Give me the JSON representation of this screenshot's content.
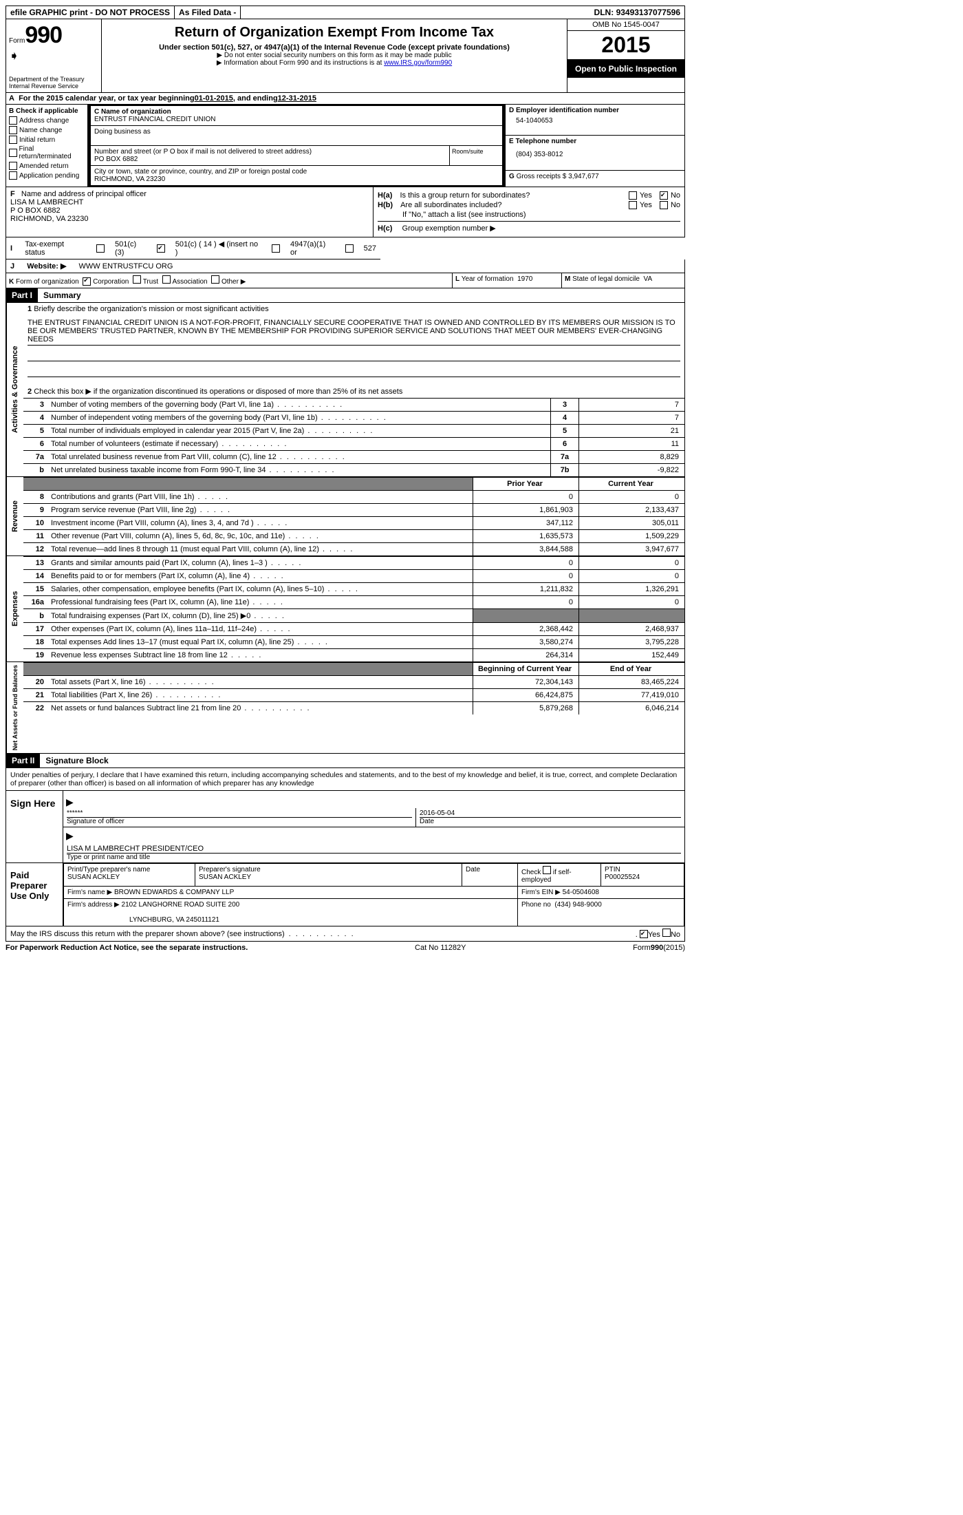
{
  "topbar": {
    "efile": "efile GRAPHIC print - DO NOT PROCESS",
    "asfiled": "As Filed Data -",
    "dln_label": "DLN:",
    "dln": "93493137077596"
  },
  "header": {
    "form_word": "Form",
    "form_no": "990",
    "dept1": "Department of the Treasury",
    "dept2": "Internal Revenue Service",
    "title": "Return of Organization Exempt From Income Tax",
    "subtitle": "Under section 501(c), 527, or 4947(a)(1) of the Internal Revenue Code (except private foundations)",
    "note1": "▶ Do not enter social security numbers on this form as it may be made public",
    "note2_a": "▶ Information about Form 990 and its instructions is at ",
    "note2_link": "www.IRS.gov/form990",
    "omb": "OMB No 1545-0047",
    "year": "2015",
    "inspection": "Open to Public Inspection"
  },
  "A": {
    "text_a": "For the 2015 calendar year, or tax year beginning ",
    "begin": "01-01-2015",
    "text_b": ", and ending ",
    "end": "12-31-2015"
  },
  "B": {
    "label": "Check if applicable",
    "opts": [
      "Address change",
      "Name change",
      "Initial return",
      "Final return/terminated",
      "Amended return",
      "Application pending"
    ]
  },
  "C": {
    "name_lbl": "Name of organization",
    "name": "ENTRUST FINANCIAL CREDIT UNION",
    "dba_lbl": "Doing business as",
    "street_lbl": "Number and street (or P O  box if mail is not delivered to street address)",
    "room_lbl": "Room/suite",
    "street": "PO BOX 6882",
    "city_lbl": "City or town, state or province, country, and ZIP or foreign postal code",
    "city": "RICHMOND, VA  23230"
  },
  "D": {
    "lbl": "Employer identification number",
    "val": "54-1040653"
  },
  "E": {
    "lbl": "Telephone number",
    "val": "(804) 353-8012"
  },
  "G": {
    "lbl": "Gross receipts $",
    "val": "3,947,677"
  },
  "F": {
    "lbl": "Name and address of principal officer",
    "l1": "LISA M LAMBRECHT",
    "l2": "P O BOX 6882",
    "l3": "RICHMOND, VA  23230"
  },
  "H": {
    "a": "Is this a group return for subordinates?",
    "b": "Are all subordinates included?",
    "b2": "If \"No,\" attach a list  (see instructions)",
    "c": "Group exemption number ▶",
    "yes": "Yes",
    "no": "No"
  },
  "I": {
    "lbl": "Tax-exempt status",
    "o1": "501(c)(3)",
    "o2": "501(c) ( 14 ) ◀ (insert no )",
    "o3": "4947(a)(1) or",
    "o4": "527"
  },
  "J": {
    "lbl": "Website: ▶",
    "val": "WWW ENTRUSTFCU ORG"
  },
  "K": {
    "lbl": "Form of organization",
    "o1": "Corporation",
    "o2": "Trust",
    "o3": "Association",
    "o4": "Other ▶"
  },
  "L": {
    "lbl": "Year of formation",
    "val": "1970"
  },
  "M": {
    "lbl": "State of legal domicile",
    "val": "VA"
  },
  "part1": {
    "tag": "Part I",
    "title": "Summary"
  },
  "p1": {
    "l1_lbl": "Briefly describe the organization's mission or most significant activities",
    "mission": "THE ENTRUST FINANCIAL CREDIT UNION IS A NOT-FOR-PROFIT, FINANCIALLY SECURE COOPERATIVE THAT IS OWNED AND CONTROLLED BY ITS MEMBERS  OUR MISSION IS TO BE OUR MEMBERS' TRUSTED PARTNER, KNOWN BY THE MEMBERSHIP FOR PROVIDING SUPERIOR SERVICE AND SOLUTIONS THAT MEET OUR MEMBERS' EVER-CHANGING NEEDS",
    "l2": "Check this box ▶     if the organization discontinued its operations or disposed of more than 25% of its net assets",
    "rows_a": [
      {
        "n": "3",
        "t": "Number of voting members of the governing body (Part VI, line 1a)",
        "box": "3",
        "v": "7"
      },
      {
        "n": "4",
        "t": "Number of independent voting members of the governing body (Part VI, line 1b)",
        "box": "4",
        "v": "7"
      },
      {
        "n": "5",
        "t": "Total number of individuals employed in calendar year 2015 (Part V, line 2a)",
        "box": "5",
        "v": "21"
      },
      {
        "n": "6",
        "t": "Total number of volunteers (estimate if necessary)",
        "box": "6",
        "v": "11"
      },
      {
        "n": "7a",
        "t": "Total unrelated business revenue from Part VIII, column (C), line 12",
        "box": "7a",
        "v": "8,829"
      },
      {
        "n": "b",
        "t": "Net unrelated business taxable income from Form 990-T, line 34",
        "box": "7b",
        "v": "-9,822"
      }
    ],
    "hdr_prior": "Prior Year",
    "hdr_curr": "Current Year",
    "rows_rev": [
      {
        "n": "8",
        "t": "Contributions and grants (Part VIII, line 1h)",
        "p": "0",
        "c": "0"
      },
      {
        "n": "9",
        "t": "Program service revenue (Part VIII, line 2g)",
        "p": "1,861,903",
        "c": "2,133,437"
      },
      {
        "n": "10",
        "t": "Investment income (Part VIII, column (A), lines 3, 4, and 7d )",
        "p": "347,112",
        "c": "305,011"
      },
      {
        "n": "11",
        "t": "Other revenue (Part VIII, column (A), lines 5, 6d, 8c, 9c, 10c, and 11e)",
        "p": "1,635,573",
        "c": "1,509,229"
      },
      {
        "n": "12",
        "t": "Total revenue—add lines 8 through 11 (must equal Part VIII, column (A), line 12)",
        "p": "3,844,588",
        "c": "3,947,677"
      }
    ],
    "rows_exp": [
      {
        "n": "13",
        "t": "Grants and similar amounts paid (Part IX, column (A), lines 1–3 )",
        "p": "0",
        "c": "0"
      },
      {
        "n": "14",
        "t": "Benefits paid to or for members (Part IX, column (A), line 4)",
        "p": "0",
        "c": "0"
      },
      {
        "n": "15",
        "t": "Salaries, other compensation, employee benefits (Part IX, column (A), lines 5–10)",
        "p": "1,211,832",
        "c": "1,326,291"
      },
      {
        "n": "16a",
        "t": "Professional fundraising fees (Part IX, column (A), line 11e)",
        "p": "0",
        "c": "0"
      },
      {
        "n": "b",
        "t": "Total fundraising expenses (Part IX, column (D), line 25) ▶0",
        "p": "shade",
        "c": "shade"
      },
      {
        "n": "17",
        "t": "Other expenses (Part IX, column (A), lines 11a–11d, 11f–24e)",
        "p": "2,368,442",
        "c": "2,468,937"
      },
      {
        "n": "18",
        "t": "Total expenses  Add lines 13–17 (must equal Part IX, column (A), line 25)",
        "p": "3,580,274",
        "c": "3,795,228"
      },
      {
        "n": "19",
        "t": "Revenue less expenses  Subtract line 18 from line 12",
        "p": "264,314",
        "c": "152,449"
      }
    ],
    "hdr_begin": "Beginning of Current Year",
    "hdr_end": "End of Year",
    "rows_net": [
      {
        "n": "20",
        "t": "Total assets (Part X, line 16)",
        "p": "72,304,143",
        "c": "83,465,224"
      },
      {
        "n": "21",
        "t": "Total liabilities (Part X, line 26)",
        "p": "66,424,875",
        "c": "77,419,010"
      },
      {
        "n": "22",
        "t": "Net assets or fund balances  Subtract line 21 from line 20",
        "p": "5,879,268",
        "c": "6,046,214"
      }
    ]
  },
  "vtabs": {
    "a": "Activities & Governance",
    "b": "Revenue",
    "c": "Expenses",
    "d": "Net Assets or Fund Balances"
  },
  "part2": {
    "tag": "Part II",
    "title": "Signature Block"
  },
  "sig": {
    "decl": "Under penalties of perjury, I declare that I have examined this return, including accompanying schedules and statements, and to the best of my knowledge and belief, it is true, correct, and complete  Declaration of preparer (other than officer) is based on all information of which preparer has any knowledge",
    "sign_here": "Sign Here",
    "stars": "******",
    "sig_lbl": "Signature of officer",
    "date_lbl": "Date",
    "date": "2016-05-04",
    "officer": "LISA M LAMBRECHT  PRESIDENT/CEO",
    "type_lbl": "Type or print name and title",
    "paid": "Paid Preparer Use Only",
    "prep_name_lbl": "Print/Type preparer's name",
    "prep_name": "SUSAN ACKLEY",
    "prep_sig_lbl": "Preparer's signature",
    "prep_sig": "SUSAN ACKLEY",
    "selfemp": "Check       if self-employed",
    "ptin_lbl": "PTIN",
    "ptin": "P00025524",
    "firm_name_lbl": "Firm's name      ▶",
    "firm_name": "BROWN EDWARDS & COMPANY LLP",
    "firm_ein_lbl": "Firm's EIN ▶",
    "firm_ein": "54-0504608",
    "firm_addr_lbl": "Firm's address ▶",
    "firm_addr1": "2102 LANGHORNE ROAD SUITE 200",
    "firm_addr2": "LYNCHBURG, VA  245011121",
    "phone_lbl": "Phone no",
    "phone": "(434) 948-9000",
    "discuss": "May the IRS discuss this return with the preparer shown above? (see instructions)"
  },
  "footer": {
    "left": "For Paperwork Reduction Act Notice, see the separate instructions.",
    "mid": "Cat No  11282Y",
    "right": "Form990(2015)"
  }
}
